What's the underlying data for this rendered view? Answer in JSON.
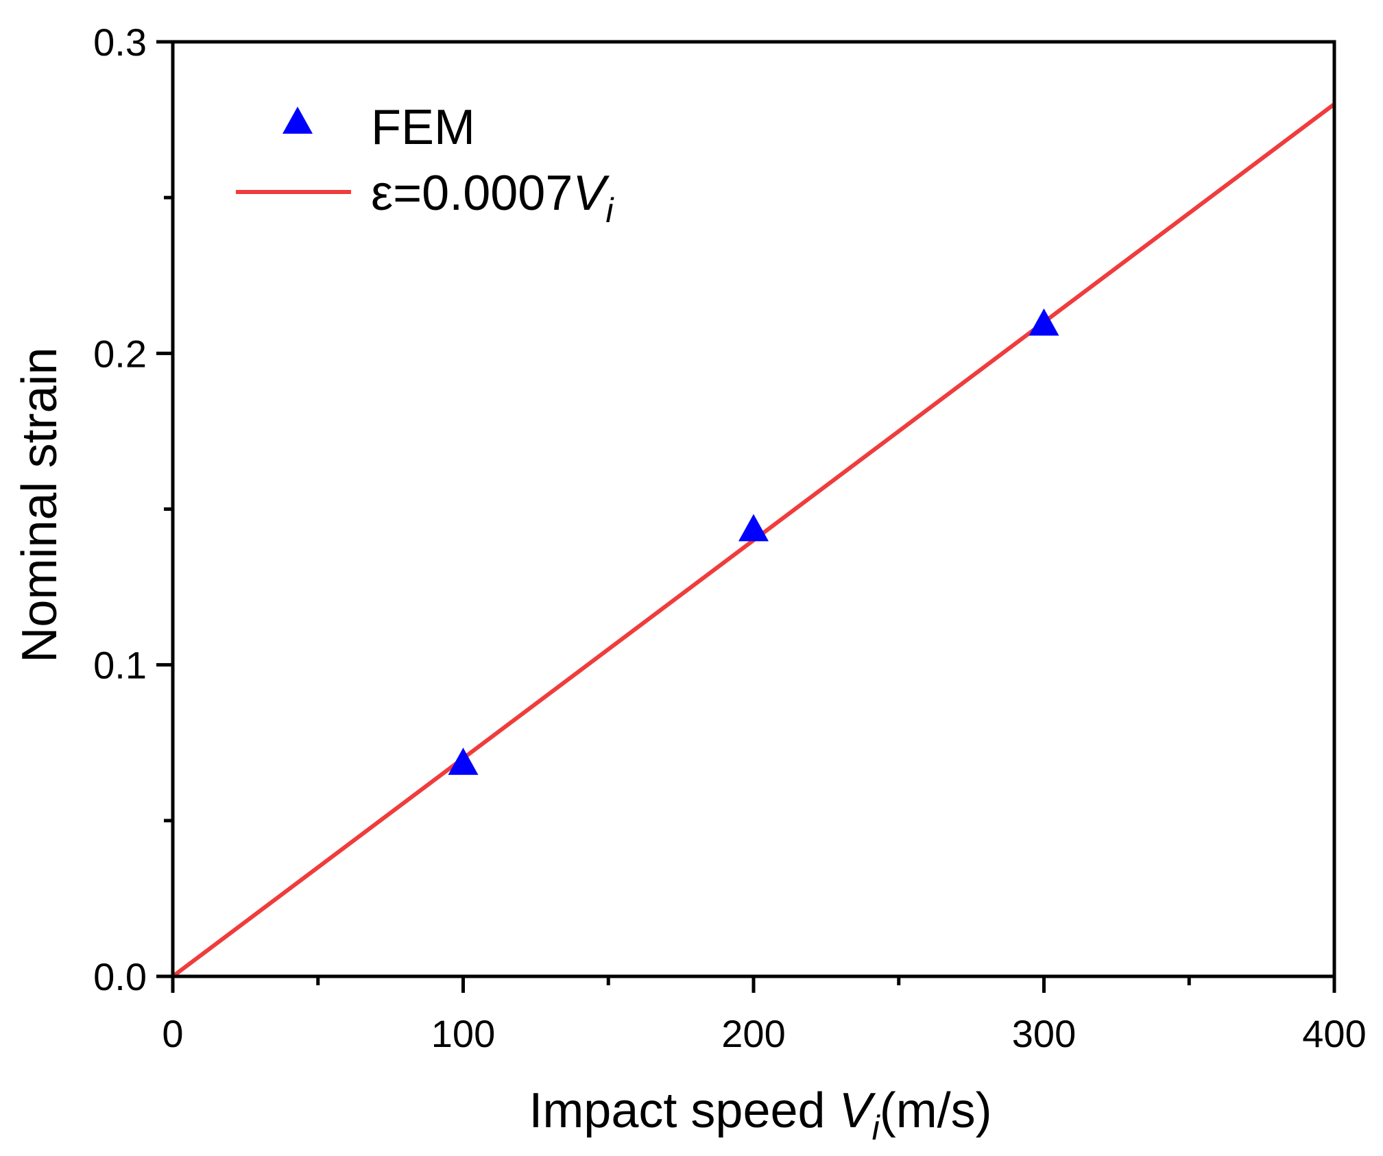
{
  "chart_data": {
    "type": "scatter",
    "title": "",
    "xlabel": {
      "prefix": "Impact speed ",
      "var": "V",
      "sub": "i",
      "suffix": "(m/s)"
    },
    "ylabel": "Nominal strain",
    "xlim": [
      0,
      400
    ],
    "ylim": [
      0,
      0.3
    ],
    "x_ticks": [
      0,
      100,
      200,
      300,
      400
    ],
    "x_tick_labels": [
      "0",
      "100",
      "200",
      "300",
      "400"
    ],
    "x_minor_ticks": [
      50,
      150,
      250,
      350
    ],
    "y_ticks": [
      0,
      0.1,
      0.2,
      0.3
    ],
    "y_tick_labels": [
      "0.0",
      "0.1",
      "0.2",
      "0.3"
    ],
    "y_minor_ticks": [
      0.05,
      0.15,
      0.25
    ],
    "grid": false,
    "legend_position": "top-left",
    "series": [
      {
        "name": "FEM",
        "kind": "scatter",
        "marker": "triangle",
        "color": "#0000ff",
        "x": [
          100,
          200,
          300
        ],
        "y": [
          0.068,
          0.143,
          0.209
        ]
      },
      {
        "name": "ε=0.0007V_i",
        "kind": "line",
        "color": "#f03c3c",
        "x": [
          0,
          400
        ],
        "y": [
          0,
          0.28
        ]
      }
    ],
    "legend": [
      {
        "label": "FEM"
      },
      {
        "label_prefix": "ε=0.0007",
        "label_var": "V",
        "label_sub": "i"
      }
    ]
  }
}
